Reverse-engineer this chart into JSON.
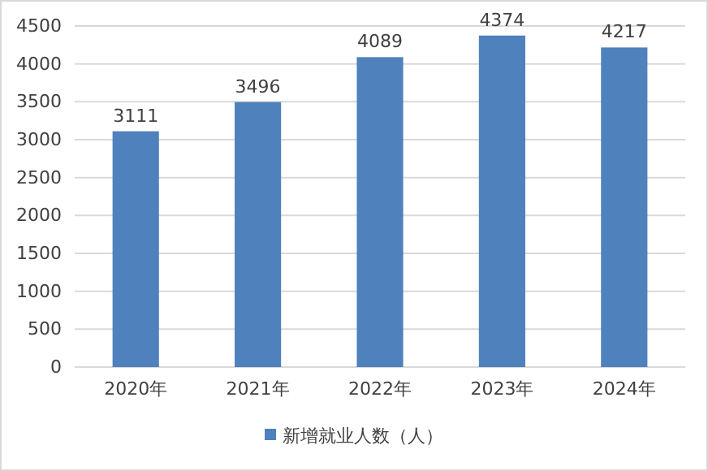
{
  "chart_data": {
    "type": "bar",
    "categories": [
      "2020年",
      "2021年",
      "2022年",
      "2023年",
      "2024年"
    ],
    "series": [
      {
        "name": "新增就业人数（人）",
        "color": "#4f81bd",
        "values": [
          3111,
          3496,
          4089,
          4374,
          4217
        ]
      }
    ],
    "ylim": [
      0,
      4500
    ],
    "yticks": [
      0,
      500,
      1000,
      1500,
      2000,
      2500,
      3000,
      3500,
      4000,
      4500
    ],
    "grid": "y",
    "legend": "bottom",
    "data_labels": true
  }
}
